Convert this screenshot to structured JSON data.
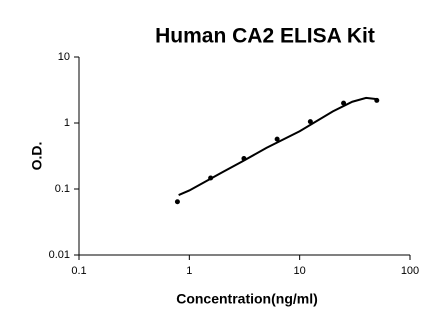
{
  "chart_data": {
    "type": "scatter",
    "title": "Human CA2 ELISA Kit",
    "x_label": "Concentration(ng/ml)",
    "y_label": "O.D.",
    "xlog": true,
    "ylog": true,
    "xlim": [
      0.1,
      100
    ],
    "ylim": [
      0.01,
      10
    ],
    "xticks": [
      0.1,
      1,
      10,
      100
    ],
    "yticks": [
      0.01,
      0.1,
      1,
      10
    ],
    "series": [
      {
        "color": "#000000",
        "x": [
          0.78,
          1.56,
          3.125,
          6.25,
          12.5,
          25,
          50
        ],
        "values": [
          0.064,
          0.147,
          0.29,
          0.57,
          1.05,
          2.0,
          2.2
        ]
      }
    ],
    "fit": {
      "color": "#000000",
      "x": [
        0.8,
        1,
        2,
        3,
        5,
        10,
        20,
        30,
        40,
        50
      ],
      "values": [
        0.081,
        0.095,
        0.18,
        0.26,
        0.42,
        0.75,
        1.5,
        2.1,
        2.4,
        2.3
      ]
    }
  }
}
